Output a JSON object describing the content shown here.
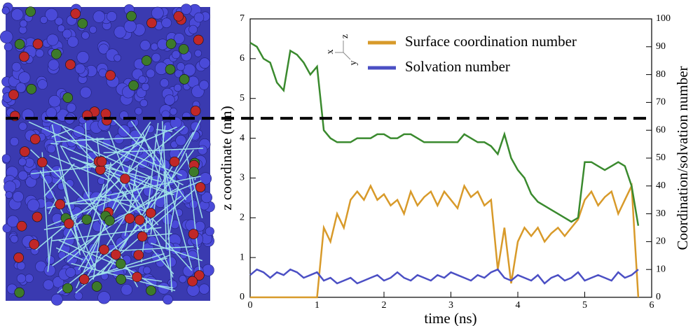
{
  "chart_data": {
    "type": "line",
    "x_label": "time (ns)",
    "y_label": "z coordinate (nm)",
    "y2_label": "Coordination/solvation number",
    "axes_icon_labels": [
      "x",
      "y",
      "z"
    ],
    "xlim": [
      0,
      6
    ],
    "xticks": [
      0,
      1,
      2,
      3,
      4,
      5,
      6
    ],
    "ylim": [
      0,
      7
    ],
    "yticks": [
      0,
      1,
      2,
      3,
      4,
      5,
      6,
      7
    ],
    "y2lim": [
      0,
      100
    ],
    "y2ticks": [
      0,
      10,
      20,
      30,
      40,
      50,
      60,
      70,
      80,
      90,
      100
    ],
    "hline": 4.5,
    "hline_color": "#000000",
    "x": [
      0,
      0.1,
      0.2,
      0.3,
      0.4,
      0.5,
      0.6,
      0.7,
      0.8,
      0.9,
      1.0,
      1.1,
      1.2,
      1.3,
      1.4,
      1.5,
      1.6,
      1.7,
      1.8,
      1.9,
      2.0,
      2.1,
      2.2,
      2.3,
      2.4,
      2.5,
      2.6,
      2.7,
      2.8,
      2.9,
      3.0,
      3.1,
      3.2,
      3.3,
      3.4,
      3.5,
      3.6,
      3.7,
      3.8,
      3.9,
      4.0,
      4.1,
      4.2,
      4.3,
      4.4,
      4.5,
      4.6,
      4.7,
      4.8,
      4.9,
      5.0,
      5.1,
      5.2,
      5.3,
      5.4,
      5.5,
      5.6,
      5.7,
      5.8
    ],
    "series": [
      {
        "name": "Surface coordination number",
        "color": "#d89a2a",
        "axis": "y2",
        "values": [
          0,
          0,
          0,
          0,
          0,
          0,
          0,
          0,
          0,
          0,
          0,
          25,
          20,
          30,
          25,
          35,
          38,
          35,
          40,
          35,
          37,
          33,
          35,
          30,
          38,
          33,
          36,
          38,
          33,
          38,
          35,
          32,
          40,
          36,
          38,
          33,
          35,
          10,
          25,
          5,
          20,
          25,
          22,
          25,
          20,
          23,
          25,
          22,
          25,
          28,
          35,
          38,
          33,
          36,
          38,
          30,
          35,
          40,
          0
        ]
      },
      {
        "name": "Solvation number",
        "color": "#4b4fc4",
        "axis": "y2",
        "values": [
          8,
          10,
          9,
          7,
          9,
          8,
          10,
          9,
          7,
          8,
          9,
          6,
          7,
          5,
          6,
          7,
          5,
          6,
          7,
          8,
          6,
          7,
          9,
          7,
          6,
          8,
          7,
          6,
          8,
          7,
          9,
          8,
          7,
          6,
          8,
          7,
          9,
          10,
          7,
          6,
          8,
          7,
          6,
          8,
          5,
          7,
          8,
          6,
          7,
          9,
          6,
          7,
          8,
          7,
          6,
          9,
          7,
          8,
          10
        ]
      },
      {
        "color": "#3a8a2e",
        "axis": "y",
        "values": [
          6.4,
          6.3,
          6.0,
          5.9,
          5.4,
          5.2,
          6.2,
          6.1,
          5.9,
          5.6,
          5.8,
          4.2,
          4.0,
          3.9,
          3.9,
          3.9,
          4.0,
          4.0,
          4.0,
          4.1,
          4.1,
          4.0,
          4.0,
          4.1,
          4.1,
          4.0,
          3.9,
          3.9,
          3.9,
          3.9,
          3.9,
          3.9,
          4.1,
          4.0,
          3.9,
          3.9,
          3.8,
          3.6,
          4.1,
          3.5,
          3.2,
          3.0,
          2.6,
          2.4,
          2.3,
          2.2,
          2.1,
          2.0,
          1.9,
          2.0,
          3.4,
          3.4,
          3.3,
          3.2,
          3.3,
          3.4,
          3.3,
          2.8,
          1.8
        ]
      }
    ]
  }
}
